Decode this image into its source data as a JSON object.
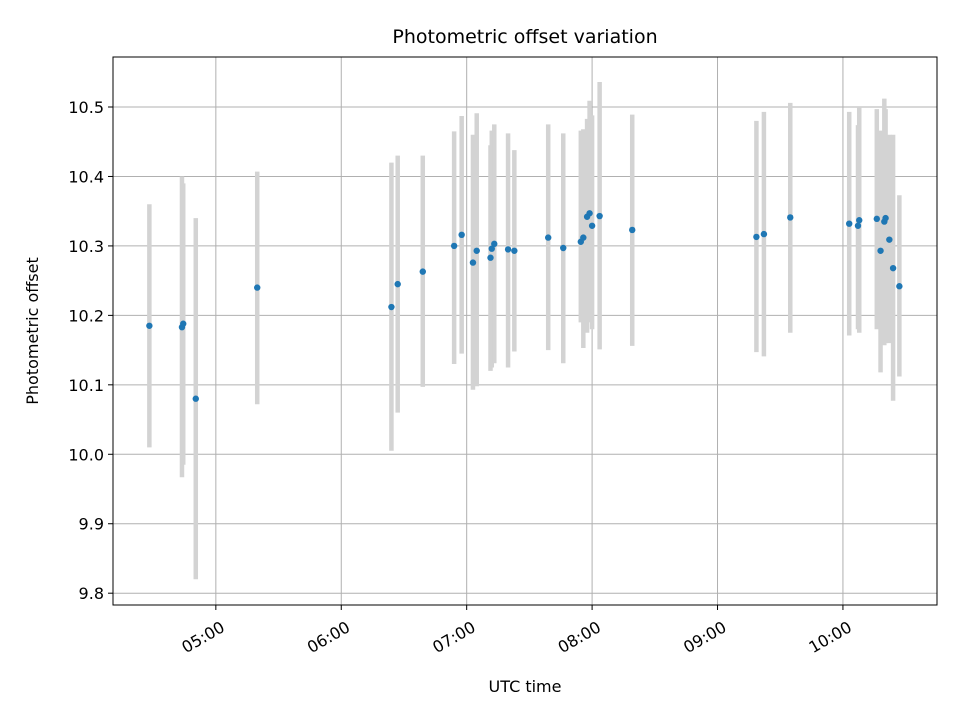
{
  "chart_data": {
    "type": "scatter",
    "title": "Photometric offset variation",
    "xlabel": "UTC time",
    "ylabel": "Photometric offset",
    "x_unit": "hours UTC",
    "xlim": [
      4.18,
      10.75
    ],
    "ylim": [
      9.783,
      10.572
    ],
    "x_ticks": [
      {
        "value": 5,
        "label": "05:00"
      },
      {
        "value": 6,
        "label": "06:00"
      },
      {
        "value": 7,
        "label": "07:00"
      },
      {
        "value": 8,
        "label": "08:00"
      },
      {
        "value": 9,
        "label": "09:00"
      },
      {
        "value": 10,
        "label": "10:00"
      }
    ],
    "y_ticks": [
      {
        "value": 9.8,
        "label": "9.8"
      },
      {
        "value": 9.9,
        "label": "9.9"
      },
      {
        "value": 10.0,
        "label": "10.0"
      },
      {
        "value": 10.1,
        "label": "10.1"
      },
      {
        "value": 10.2,
        "label": "10.2"
      },
      {
        "value": 10.3,
        "label": "10.3"
      },
      {
        "value": 10.4,
        "label": "10.4"
      },
      {
        "value": 10.5,
        "label": "10.5"
      }
    ],
    "grid": true,
    "colors": {
      "points": "#1f77b4",
      "errorbars": "#d3d3d3",
      "grid": "#b0b0b0"
    },
    "points": [
      {
        "x": 4.47,
        "y": 10.185,
        "lo": 10.01,
        "hi": 10.36
      },
      {
        "x": 4.73,
        "y": 10.183,
        "lo": 9.967,
        "hi": 10.4
      },
      {
        "x": 4.74,
        "y": 10.188,
        "lo": 9.985,
        "hi": 10.39
      },
      {
        "x": 4.84,
        "y": 10.08,
        "lo": 9.82,
        "hi": 10.34
      },
      {
        "x": 5.33,
        "y": 10.24,
        "lo": 10.072,
        "hi": 10.407
      },
      {
        "x": 6.4,
        "y": 10.212,
        "lo": 10.005,
        "hi": 10.42
      },
      {
        "x": 6.45,
        "y": 10.245,
        "lo": 10.06,
        "hi": 10.43
      },
      {
        "x": 6.65,
        "y": 10.263,
        "lo": 10.097,
        "hi": 10.43
      },
      {
        "x": 6.9,
        "y": 10.3,
        "lo": 10.13,
        "hi": 10.465
      },
      {
        "x": 6.96,
        "y": 10.316,
        "lo": 10.145,
        "hi": 10.487
      },
      {
        "x": 7.05,
        "y": 10.276,
        "lo": 10.093,
        "hi": 10.46
      },
      {
        "x": 7.08,
        "y": 10.293,
        "lo": 10.098,
        "hi": 10.491
      },
      {
        "x": 7.19,
        "y": 10.283,
        "lo": 10.12,
        "hi": 10.445
      },
      {
        "x": 7.2,
        "y": 10.296,
        "lo": 10.125,
        "hi": 10.466
      },
      {
        "x": 7.22,
        "y": 10.303,
        "lo": 10.131,
        "hi": 10.475
      },
      {
        "x": 7.33,
        "y": 10.295,
        "lo": 10.125,
        "hi": 10.462
      },
      {
        "x": 7.38,
        "y": 10.293,
        "lo": 10.148,
        "hi": 10.438
      },
      {
        "x": 7.65,
        "y": 10.312,
        "lo": 10.15,
        "hi": 10.475
      },
      {
        "x": 7.77,
        "y": 10.297,
        "lo": 10.131,
        "hi": 10.462
      },
      {
        "x": 7.91,
        "y": 10.306,
        "lo": 10.19,
        "hi": 10.466
      },
      {
        "x": 7.93,
        "y": 10.312,
        "lo": 10.153,
        "hi": 10.468
      },
      {
        "x": 7.96,
        "y": 10.342,
        "lo": 10.175,
        "hi": 10.483
      },
      {
        "x": 7.98,
        "y": 10.347,
        "lo": 10.19,
        "hi": 10.509
      },
      {
        "x": 8.0,
        "y": 10.329,
        "lo": 10.18,
        "hi": 10.488
      },
      {
        "x": 8.06,
        "y": 10.343,
        "lo": 10.151,
        "hi": 10.536
      },
      {
        "x": 8.32,
        "y": 10.323,
        "lo": 10.156,
        "hi": 10.489
      },
      {
        "x": 9.31,
        "y": 10.313,
        "lo": 10.147,
        "hi": 10.48
      },
      {
        "x": 9.37,
        "y": 10.317,
        "lo": 10.141,
        "hi": 10.493
      },
      {
        "x": 9.58,
        "y": 10.341,
        "lo": 10.175,
        "hi": 10.506
      },
      {
        "x": 10.05,
        "y": 10.332,
        "lo": 10.171,
        "hi": 10.493
      },
      {
        "x": 10.12,
        "y": 10.329,
        "lo": 10.18,
        "hi": 10.474
      },
      {
        "x": 10.13,
        "y": 10.337,
        "lo": 10.175,
        "hi": 10.5
      },
      {
        "x": 10.27,
        "y": 10.339,
        "lo": 10.18,
        "hi": 10.497
      },
      {
        "x": 10.3,
        "y": 10.293,
        "lo": 10.118,
        "hi": 10.466
      },
      {
        "x": 10.33,
        "y": 10.335,
        "lo": 10.157,
        "hi": 10.512
      },
      {
        "x": 10.34,
        "y": 10.34,
        "lo": 10.16,
        "hi": 10.497
      },
      {
        "x": 10.37,
        "y": 10.309,
        "lo": 10.16,
        "hi": 10.46
      },
      {
        "x": 10.4,
        "y": 10.268,
        "lo": 10.077,
        "hi": 10.46
      },
      {
        "x": 10.45,
        "y": 10.242,
        "lo": 10.112,
        "hi": 10.373
      }
    ]
  }
}
